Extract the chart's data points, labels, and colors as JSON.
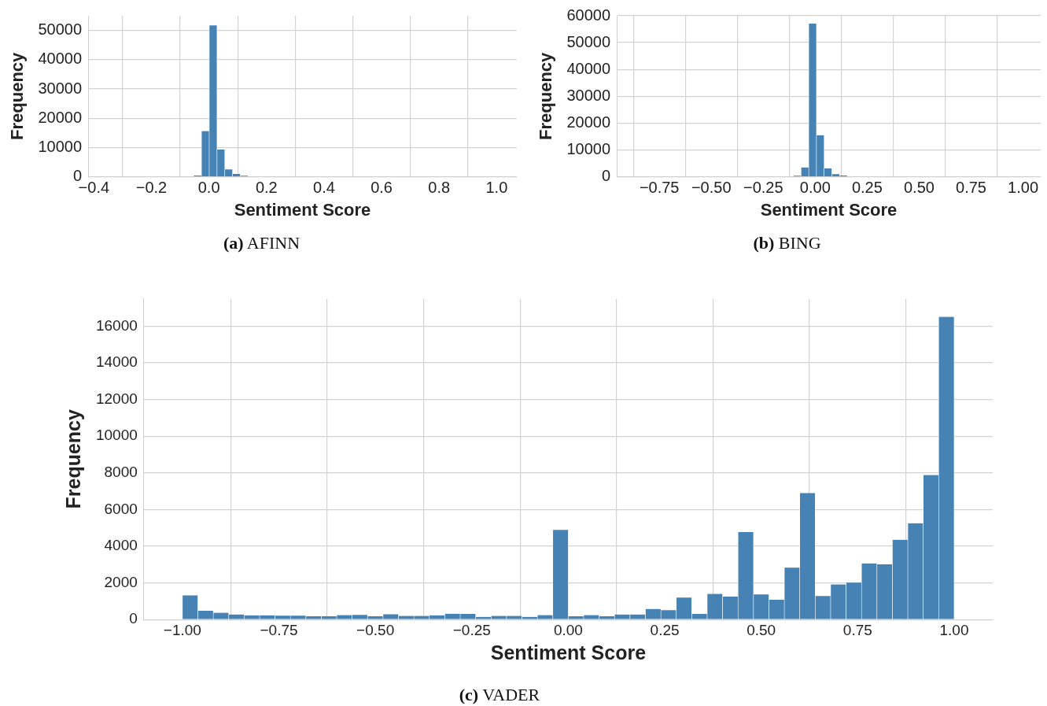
{
  "chart_data": [
    {
      "type": "histogram",
      "annotations": [
        "(a) AFINN"
      ],
      "xlabel": "Sentiment Score",
      "ylabel": "Frequency",
      "color": "#4682b4",
      "bins": [
        -0.35,
        -0.323,
        -0.296,
        -0.269,
        -0.242,
        -0.215,
        -0.188,
        -0.161,
        -0.134,
        -0.107,
        -0.08,
        -0.053,
        -0.026,
        0.001,
        0.028,
        0.055,
        0.082,
        0.109,
        0.136,
        0.163,
        0.19,
        0.217,
        0.244,
        0.271,
        0.298,
        0.325,
        0.352,
        0.379,
        0.406,
        0.433,
        0.46,
        0.487,
        0.514,
        0.541,
        0.568,
        0.595,
        0.622,
        0.649,
        0.676,
        0.703,
        0.73,
        0.757,
        0.784,
        0.811,
        0.838,
        0.865,
        0.892,
        0.919,
        0.946,
        0.973,
        1.0
      ],
      "values": [
        0,
        0,
        0,
        0,
        0,
        0,
        0,
        0,
        0,
        0,
        0,
        400,
        15600,
        51700,
        9300,
        2540,
        940,
        380,
        0,
        0,
        0,
        0,
        0,
        0,
        0,
        0,
        0,
        0,
        0,
        0,
        0,
        0,
        0,
        0,
        0,
        0,
        0,
        0,
        0,
        0,
        0,
        0,
        0,
        0,
        0,
        0,
        0,
        0,
        0,
        0
      ],
      "xlim": [
        -0.42,
        1.07
      ],
      "xticks": [
        {
          "value": -0.4,
          "label": "−0.4"
        },
        {
          "value": -0.2,
          "label": "−0.2"
        },
        {
          "value": 0,
          "label": "0.0"
        },
        {
          "value": 0.2,
          "label": "0.2"
        },
        {
          "value": 0.4,
          "label": "0.4"
        },
        {
          "value": 0.6,
          "label": "0.6"
        },
        {
          "value": 0.8,
          "label": "0.8"
        },
        {
          "value": 1,
          "label": "1.0"
        }
      ],
      "ylim": [
        0,
        55000
      ],
      "yticks": [
        0,
        10000,
        20000,
        30000,
        40000,
        50000
      ],
      "grid": true
    },
    {
      "type": "histogram",
      "annotations": [
        "(b) BING"
      ],
      "xlabel": "Sentiment Score",
      "ylabel": "Frequency",
      "color": "#4682b4",
      "bins": [
        -0.882,
        -0.845,
        -0.808,
        -0.771,
        -0.734,
        -0.697,
        -0.66,
        -0.623,
        -0.586,
        -0.549,
        -0.512,
        -0.475,
        -0.438,
        -0.401,
        -0.364,
        -0.327,
        -0.29,
        -0.253,
        -0.216,
        -0.179,
        -0.142,
        -0.105,
        -0.068,
        -0.031,
        0.006,
        0.043,
        0.08,
        0.117,
        0.154,
        0.191,
        0.228,
        0.265,
        0.302,
        0.339,
        0.376,
        0.413,
        0.45,
        0.487,
        0.524,
        0.561,
        0.598,
        0.635,
        0.672,
        0.709,
        0.746,
        0.783,
        0.82,
        0.857,
        0.894,
        0.931,
        0.968
      ],
      "values": [
        0,
        0,
        0,
        0,
        0,
        0,
        0,
        0,
        0,
        0,
        0,
        0,
        0,
        0,
        0,
        0,
        0,
        0,
        0,
        0,
        0,
        400,
        3500,
        57100,
        15500,
        3100,
        1000,
        500,
        0,
        0,
        0,
        0,
        0,
        0,
        0,
        0,
        0,
        0,
        0,
        0,
        0,
        0,
        0,
        0,
        0,
        0,
        0,
        0,
        0,
        0
      ],
      "xlim": [
        -0.955,
        1.085
      ],
      "xticks": [
        {
          "value": -0.75,
          "label": "−0.75"
        },
        {
          "value": -0.5,
          "label": "−0.50"
        },
        {
          "value": -0.25,
          "label": "−0.25"
        },
        {
          "value": 0,
          "label": "0.00"
        },
        {
          "value": 0.25,
          "label": "0.25"
        },
        {
          "value": 0.5,
          "label": "0.50"
        },
        {
          "value": 0.75,
          "label": "0.75"
        },
        {
          "value": 1,
          "label": "1.00"
        }
      ],
      "ylim": [
        0,
        60000
      ],
      "yticks": [
        0,
        10000,
        20000,
        30000,
        40000,
        50000,
        60000
      ],
      "grid": true
    },
    {
      "type": "histogram",
      "annotations": [
        "(c) VADER"
      ],
      "xlabel": "Sentiment Score",
      "ylabel": "Frequency",
      "color": "#4682b4",
      "bins": [
        -1,
        -0.96,
        -0.92,
        -0.88,
        -0.84,
        -0.8,
        -0.76,
        -0.72,
        -0.68,
        -0.64,
        -0.6,
        -0.56,
        -0.52,
        -0.48,
        -0.44,
        -0.4,
        -0.36,
        -0.32,
        -0.28,
        -0.24,
        -0.2,
        -0.16,
        -0.12,
        -0.08,
        -0.04,
        0,
        0.04,
        0.08,
        0.12,
        0.16,
        0.2,
        0.24,
        0.28,
        0.32,
        0.36,
        0.4,
        0.44,
        0.48,
        0.52,
        0.56,
        0.6,
        0.64,
        0.68,
        0.72,
        0.76,
        0.8,
        0.84,
        0.88,
        0.92,
        0.96,
        1
      ],
      "values": [
        1320,
        480,
        370,
        280,
        230,
        230,
        215,
        215,
        185,
        185,
        245,
        260,
        185,
        290,
        200,
        200,
        230,
        320,
        310,
        150,
        200,
        200,
        150,
        245,
        4890,
        185,
        245,
        185,
        280,
        280,
        580,
        510,
        1200,
        310,
        1400,
        1250,
        4770,
        1370,
        1080,
        2830,
        6900,
        1280,
        1920,
        2015,
        3060,
        3015,
        4350,
        5250,
        7880,
        16510
      ],
      "xlim": [
        -1.1,
        1.1
      ],
      "xticks": [
        {
          "value": -1,
          "label": "−1.00"
        },
        {
          "value": -0.75,
          "label": "−0.75"
        },
        {
          "value": -0.5,
          "label": "−0.50"
        },
        {
          "value": -0.25,
          "label": "−0.25"
        },
        {
          "value": 0,
          "label": "0.00"
        },
        {
          "value": 0.25,
          "label": "0.25"
        },
        {
          "value": 0.5,
          "label": "0.50"
        },
        {
          "value": 0.75,
          "label": "0.75"
        },
        {
          "value": 1,
          "label": "1.00"
        }
      ],
      "ylim": [
        0,
        17500
      ],
      "yticks": [
        0,
        2000,
        4000,
        6000,
        8000,
        10000,
        12000,
        14000,
        16000
      ],
      "grid": true
    }
  ]
}
